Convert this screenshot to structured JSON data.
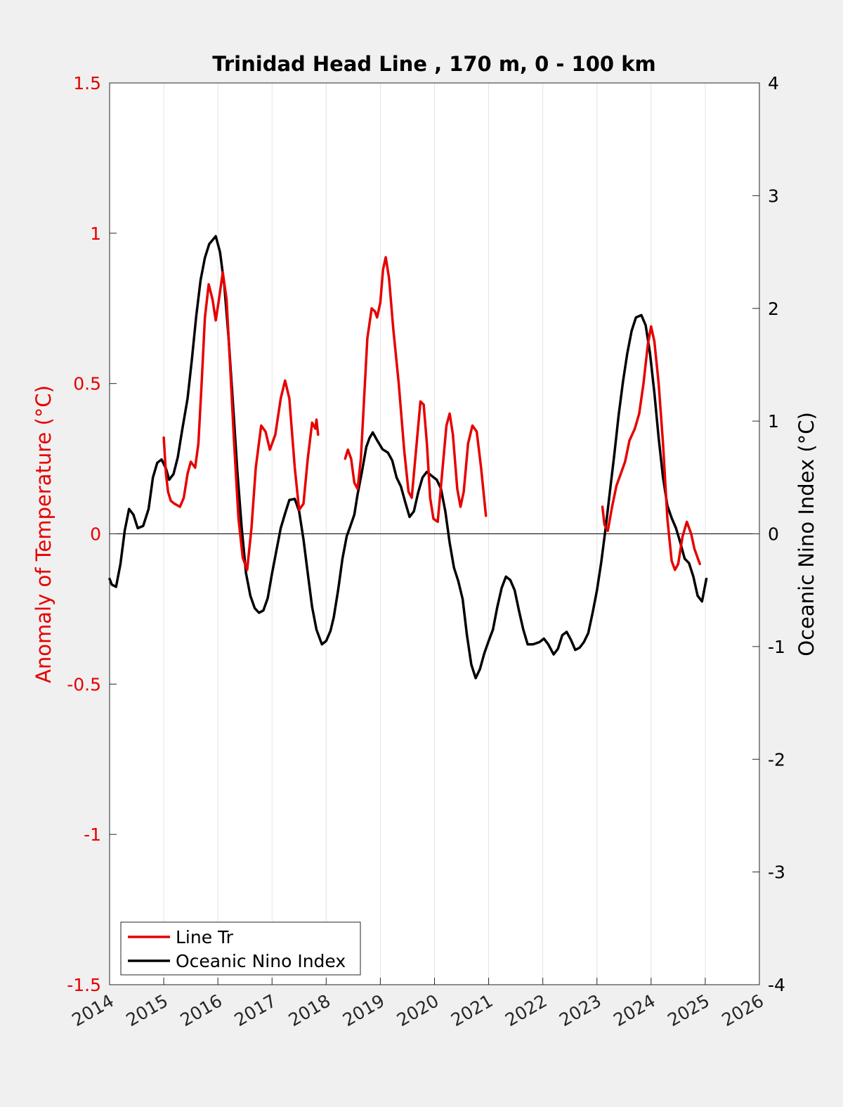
{
  "chart_data": {
    "type": "line",
    "title": "Trinidad Head Line , 170 m, 0 - 100 km",
    "xlabel": "",
    "ylabel_left": "Anomaly of Temperature (°C)",
    "ylabel_right": "Oceanic Nino Index (°C)",
    "xlim": [
      2014,
      2026
    ],
    "ylim_left": [
      -1.5,
      1.5
    ],
    "ylim_right": [
      -4,
      4
    ],
    "x_ticks": [
      "2014",
      "2015",
      "2016",
      "2017",
      "2018",
      "2019",
      "2020",
      "2021",
      "2022",
      "2023",
      "2024",
      "2025",
      "2026"
    ],
    "y_left_ticks": [
      "-1.5",
      "-1",
      "-0.5",
      "0",
      "0.5",
      "1",
      "1.5"
    ],
    "y_right_ticks": [
      "-4",
      "-3",
      "-2",
      "-1",
      "0",
      "1",
      "2",
      "3",
      "4"
    ],
    "grid": "vertical",
    "zero_line": true,
    "legend_position": "bottom-left",
    "colors": {
      "left_axis": "#e60000",
      "line_tr": "#e60000",
      "oni": "#000000",
      "plot_bg": "#ffffff",
      "figure_bg": "#f0f0f0"
    },
    "series": [
      {
        "name": "Line Tr",
        "axis": "left",
        "color": "#e60000",
        "segments": [
          [
            [
              2015.0,
              0.32
            ],
            [
              2015.04,
              0.2
            ],
            [
              2015.08,
              0.14
            ],
            [
              2015.13,
              0.11
            ],
            [
              2015.2,
              0.1
            ],
            [
              2015.3,
              0.09
            ],
            [
              2015.37,
              0.12
            ],
            [
              2015.44,
              0.2
            ],
            [
              2015.5,
              0.24
            ],
            [
              2015.58,
              0.22
            ],
            [
              2015.64,
              0.3
            ],
            [
              2015.7,
              0.5
            ],
            [
              2015.76,
              0.72
            ],
            [
              2015.83,
              0.83
            ],
            [
              2015.9,
              0.78
            ],
            [
              2015.96,
              0.71
            ],
            [
              2016.02,
              0.78
            ],
            [
              2016.09,
              0.87
            ],
            [
              2016.16,
              0.78
            ],
            [
              2016.22,
              0.58
            ],
            [
              2016.3,
              0.3
            ],
            [
              2016.38,
              0.05
            ],
            [
              2016.46,
              -0.08
            ],
            [
              2016.54,
              -0.12
            ],
            [
              2016.62,
              0.02
            ],
            [
              2016.7,
              0.22
            ],
            [
              2016.8,
              0.36
            ],
            [
              2016.88,
              0.34
            ],
            [
              2016.96,
              0.28
            ],
            [
              2017.06,
              0.33
            ],
            [
              2017.16,
              0.45
            ],
            [
              2017.24,
              0.51
            ],
            [
              2017.32,
              0.45
            ],
            [
              2017.42,
              0.22
            ],
            [
              2017.5,
              0.08
            ],
            [
              2017.58,
              0.1
            ],
            [
              2017.66,
              0.25
            ],
            [
              2017.74,
              0.37
            ],
            [
              2017.8,
              0.35
            ],
            [
              2017.82,
              0.38
            ],
            [
              2017.85,
              0.33
            ]
          ],
          [
            [
              2018.35,
              0.25
            ],
            [
              2018.4,
              0.28
            ],
            [
              2018.46,
              0.25
            ],
            [
              2018.52,
              0.17
            ],
            [
              2018.58,
              0.15
            ],
            [
              2018.64,
              0.25
            ],
            [
              2018.7,
              0.45
            ],
            [
              2018.76,
              0.65
            ],
            [
              2018.84,
              0.75
            ],
            [
              2018.9,
              0.74
            ],
            [
              2018.94,
              0.72
            ],
            [
              2019.0,
              0.77
            ],
            [
              2019.05,
              0.88
            ],
            [
              2019.1,
              0.92
            ],
            [
              2019.16,
              0.85
            ],
            [
              2019.24,
              0.68
            ],
            [
              2019.34,
              0.5
            ],
            [
              2019.44,
              0.28
            ],
            [
              2019.52,
              0.14
            ],
            [
              2019.58,
              0.12
            ],
            [
              2019.66,
              0.28
            ],
            [
              2019.74,
              0.44
            ],
            [
              2019.8,
              0.43
            ],
            [
              2019.86,
              0.3
            ],
            [
              2019.92,
              0.12
            ],
            [
              2019.98,
              0.05
            ],
            [
              2020.06,
              0.04
            ],
            [
              2020.14,
              0.2
            ],
            [
              2020.22,
              0.36
            ],
            [
              2020.28,
              0.4
            ],
            [
              2020.34,
              0.33
            ],
            [
              2020.42,
              0.15
            ],
            [
              2020.48,
              0.09
            ],
            [
              2020.54,
              0.14
            ],
            [
              2020.62,
              0.3
            ],
            [
              2020.7,
              0.36
            ],
            [
              2020.78,
              0.34
            ],
            [
              2020.86,
              0.22
            ],
            [
              2020.95,
              0.06
            ]
          ],
          [
            [
              2023.1,
              0.09
            ],
            [
              2023.14,
              0.03
            ],
            [
              2023.2,
              0.01
            ],
            [
              2023.28,
              0.09
            ],
            [
              2023.36,
              0.16
            ],
            [
              2023.44,
              0.2
            ],
            [
              2023.52,
              0.24
            ],
            [
              2023.6,
              0.31
            ],
            [
              2023.7,
              0.35
            ],
            [
              2023.78,
              0.4
            ],
            [
              2023.86,
              0.5
            ],
            [
              2023.94,
              0.63
            ],
            [
              2024.0,
              0.69
            ],
            [
              2024.06,
              0.64
            ],
            [
              2024.14,
              0.5
            ],
            [
              2024.22,
              0.3
            ],
            [
              2024.3,
              0.05
            ],
            [
              2024.38,
              -0.09
            ],
            [
              2024.44,
              -0.12
            ],
            [
              2024.5,
              -0.1
            ],
            [
              2024.58,
              -0.01
            ],
            [
              2024.66,
              0.04
            ],
            [
              2024.74,
              0.0
            ],
            [
              2024.8,
              -0.05
            ],
            [
              2024.9,
              -0.1
            ]
          ]
        ]
      },
      {
        "name": "Oceanic Nino Index",
        "axis": "right",
        "color": "#000000",
        "points": [
          [
            2014.0,
            -0.4
          ],
          [
            2014.04,
            -0.45
          ],
          [
            2014.12,
            -0.47
          ],
          [
            2014.2,
            -0.27
          ],
          [
            2014.28,
            0.03
          ],
          [
            2014.36,
            0.22
          ],
          [
            2014.44,
            0.17
          ],
          [
            2014.52,
            0.05
          ],
          [
            2014.62,
            0.07
          ],
          [
            2014.72,
            0.22
          ],
          [
            2014.8,
            0.5
          ],
          [
            2014.88,
            0.63
          ],
          [
            2014.96,
            0.66
          ],
          [
            2015.04,
            0.58
          ],
          [
            2015.1,
            0.48
          ],
          [
            2015.18,
            0.53
          ],
          [
            2015.26,
            0.68
          ],
          [
            2015.34,
            0.92
          ],
          [
            2015.44,
            1.2
          ],
          [
            2015.52,
            1.55
          ],
          [
            2015.6,
            1.93
          ],
          [
            2015.68,
            2.25
          ],
          [
            2015.76,
            2.45
          ],
          [
            2015.84,
            2.57
          ],
          [
            2015.96,
            2.64
          ],
          [
            2016.04,
            2.5
          ],
          [
            2016.12,
            2.2
          ],
          [
            2016.2,
            1.72
          ],
          [
            2016.28,
            1.15
          ],
          [
            2016.36,
            0.55
          ],
          [
            2016.44,
            0.05
          ],
          [
            2016.52,
            -0.35
          ],
          [
            2016.6,
            -0.55
          ],
          [
            2016.68,
            -0.66
          ],
          [
            2016.76,
            -0.7
          ],
          [
            2016.84,
            -0.68
          ],
          [
            2016.92,
            -0.57
          ],
          [
            2017.0,
            -0.35
          ],
          [
            2017.08,
            -0.15
          ],
          [
            2017.16,
            0.05
          ],
          [
            2017.24,
            0.18
          ],
          [
            2017.32,
            0.3
          ],
          [
            2017.42,
            0.31
          ],
          [
            2017.5,
            0.2
          ],
          [
            2017.58,
            -0.05
          ],
          [
            2017.66,
            -0.35
          ],
          [
            2017.74,
            -0.65
          ],
          [
            2017.82,
            -0.85
          ],
          [
            2017.92,
            -0.98
          ],
          [
            2018.0,
            -0.95
          ],
          [
            2018.08,
            -0.86
          ],
          [
            2018.14,
            -0.74
          ],
          [
            2018.22,
            -0.5
          ],
          [
            2018.3,
            -0.22
          ],
          [
            2018.38,
            -0.02
          ],
          [
            2018.44,
            0.06
          ],
          [
            2018.52,
            0.17
          ],
          [
            2018.58,
            0.35
          ],
          [
            2018.66,
            0.55
          ],
          [
            2018.74,
            0.77
          ],
          [
            2018.8,
            0.85
          ],
          [
            2018.86,
            0.9
          ],
          [
            2018.94,
            0.83
          ],
          [
            2019.04,
            0.75
          ],
          [
            2019.14,
            0.72
          ],
          [
            2019.22,
            0.65
          ],
          [
            2019.3,
            0.5
          ],
          [
            2019.38,
            0.42
          ],
          [
            2019.46,
            0.28
          ],
          [
            2019.54,
            0.15
          ],
          [
            2019.62,
            0.2
          ],
          [
            2019.7,
            0.37
          ],
          [
            2019.78,
            0.5
          ],
          [
            2019.86,
            0.55
          ],
          [
            2019.96,
            0.51
          ],
          [
            2020.04,
            0.48
          ],
          [
            2020.12,
            0.4
          ],
          [
            2020.2,
            0.2
          ],
          [
            2020.28,
            -0.08
          ],
          [
            2020.36,
            -0.3
          ],
          [
            2020.44,
            -0.42
          ],
          [
            2020.52,
            -0.58
          ],
          [
            2020.6,
            -0.9
          ],
          [
            2020.68,
            -1.16
          ],
          [
            2020.76,
            -1.28
          ],
          [
            2020.84,
            -1.2
          ],
          [
            2020.92,
            -1.06
          ],
          [
            2021.0,
            -0.95
          ],
          [
            2021.08,
            -0.85
          ],
          [
            2021.16,
            -0.65
          ],
          [
            2021.24,
            -0.48
          ],
          [
            2021.32,
            -0.38
          ],
          [
            2021.4,
            -0.41
          ],
          [
            2021.48,
            -0.5
          ],
          [
            2021.56,
            -0.68
          ],
          [
            2021.64,
            -0.85
          ],
          [
            2021.72,
            -0.98
          ],
          [
            2021.82,
            -0.98
          ],
          [
            2021.94,
            -0.96
          ],
          [
            2022.02,
            -0.93
          ],
          [
            2022.1,
            -0.98
          ],
          [
            2022.2,
            -1.07
          ],
          [
            2022.28,
            -1.02
          ],
          [
            2022.36,
            -0.9
          ],
          [
            2022.44,
            -0.87
          ],
          [
            2022.52,
            -0.94
          ],
          [
            2022.6,
            -1.03
          ],
          [
            2022.68,
            -1.01
          ],
          [
            2022.76,
            -0.96
          ],
          [
            2022.84,
            -0.88
          ],
          [
            2022.92,
            -0.7
          ],
          [
            2023.0,
            -0.5
          ],
          [
            2023.08,
            -0.25
          ],
          [
            2023.16,
            0.05
          ],
          [
            2023.24,
            0.38
          ],
          [
            2023.32,
            0.7
          ],
          [
            2023.4,
            1.05
          ],
          [
            2023.48,
            1.35
          ],
          [
            2023.56,
            1.6
          ],
          [
            2023.64,
            1.8
          ],
          [
            2023.72,
            1.92
          ],
          [
            2023.82,
            1.94
          ],
          [
            2023.9,
            1.85
          ],
          [
            2023.98,
            1.6
          ],
          [
            2024.06,
            1.25
          ],
          [
            2024.14,
            0.85
          ],
          [
            2024.22,
            0.5
          ],
          [
            2024.3,
            0.25
          ],
          [
            2024.38,
            0.14
          ],
          [
            2024.46,
            0.05
          ],
          [
            2024.54,
            -0.08
          ],
          [
            2024.62,
            -0.22
          ],
          [
            2024.7,
            -0.26
          ],
          [
            2024.78,
            -0.38
          ],
          [
            2024.86,
            -0.55
          ],
          [
            2024.94,
            -0.6
          ],
          [
            2025.02,
            -0.4
          ]
        ]
      }
    ]
  }
}
